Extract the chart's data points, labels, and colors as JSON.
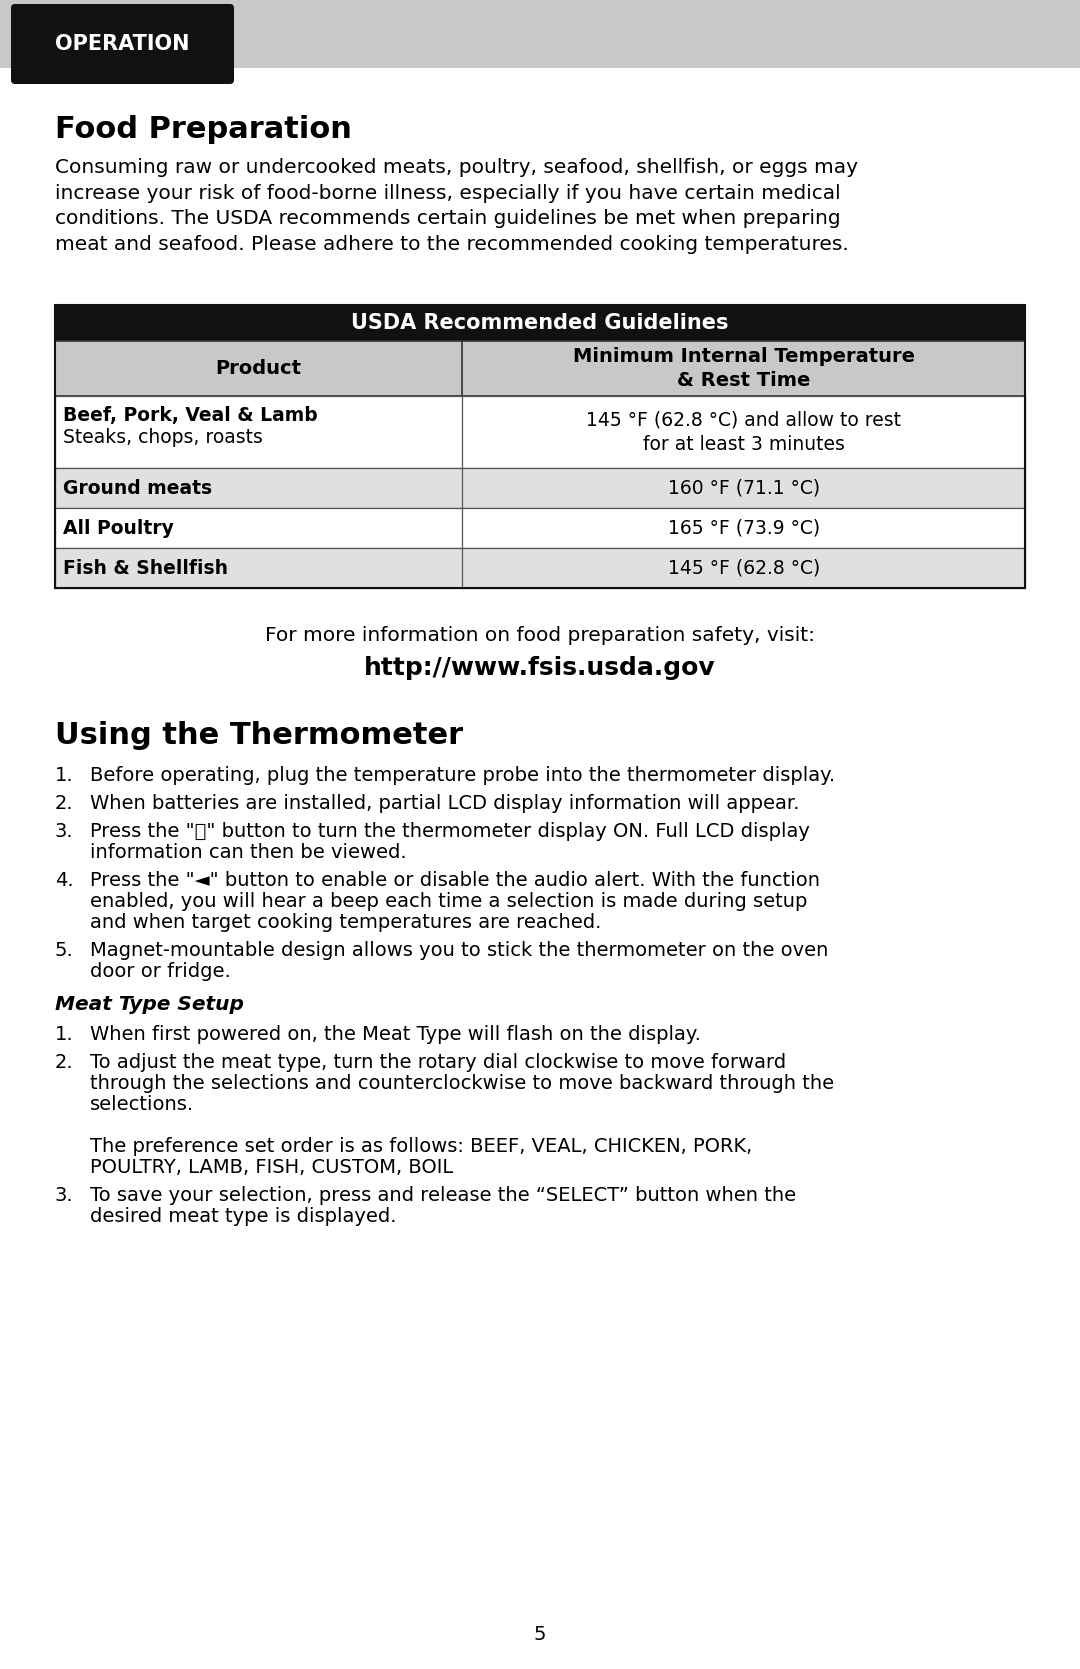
{
  "bg_color": "#ffffff",
  "page_bg_color": "#c8c8c8",
  "header_bg_color": "#111111",
  "header_text": "OPERATION",
  "header_text_color": "#ffffff",
  "section1_title": "Food Preparation",
  "section1_body": "Consuming raw or undercooked meats, poultry, seafood, shellfish, or eggs may\nincrease your risk of food-borne illness, especially if you have certain medical\nconditions. The USDA recommends certain guidelines be met when preparing\nmeat and seafood. Please adhere to the recommended cooking temperatures.",
  "table_header_bg": "#111111",
  "table_header_text": "USDA Recommended Guidelines",
  "table_header_text_color": "#ffffff",
  "table_subheader_bg": "#c8c8c8",
  "table_col1_header": "Product",
  "table_col2_header": "Minimum Internal Temperature\n& Rest Time",
  "table_rows": [
    {
      "col1_bold": "Beef, Pork, Veal & Lamb",
      "col1_normal": "Steaks, chops, roasts",
      "col2": "145 °F (62.8 °C) and allow to rest\nfor at least 3 minutes",
      "row_bg": "#ffffff"
    },
    {
      "col1_bold": "Ground meats",
      "col1_normal": "",
      "col2": "160 °F (71.1 °C)",
      "row_bg": "#e0e0e0"
    },
    {
      "col1_bold": "All Poultry",
      "col1_normal": "",
      "col2": "165 °F (73.9 °C)",
      "row_bg": "#ffffff"
    },
    {
      "col1_bold": "Fish & Shellfish",
      "col1_normal": "",
      "col2": "145 °F (62.8 °C)",
      "row_bg": "#e0e0e0"
    }
  ],
  "url_line1": "For more information on food preparation safety, visit:",
  "url_line2": "http://www.fsis.usda.gov",
  "section2_title": "Using the Thermometer",
  "section2_items": [
    {
      "num": "1.",
      "text": "Before operating, plug the temperature probe into the thermometer display."
    },
    {
      "num": "2.",
      "text": "When batteries are installed, partial LCD display information will appear."
    },
    {
      "num": "3.",
      "text": "Press the \"⏻\" button to turn the thermometer display ON. Full LCD display\n    information can then be viewed."
    },
    {
      "num": "4.",
      "text": "Press the \"◄\" button to enable or disable the audio alert. With the function\n    enabled, you will hear a beep each time a selection is made during setup\n    and when target cooking temperatures are reached."
    },
    {
      "num": "5.",
      "text": "Magnet-mountable design allows you to stick the thermometer on the oven\n    door or fridge."
    }
  ],
  "subsection_title": "Meat Type Setup",
  "subsection_items": [
    {
      "num": "1.",
      "text": "When first powered on, the Meat Type will flash on the display."
    },
    {
      "num": "2.",
      "text": "To adjust the meat type, turn the rotary dial clockwise to move forward\n    through the selections and counterclockwise to move backward through the\n    selections.\n\n    The preference set order is as follows: BEEF, VEAL, CHICKEN, PORK,\n    POULTRY, LAMB, FISH, CUSTOM, BOIL"
    },
    {
      "num": "3.",
      "text": "To save your selection, press and release the “SELECT” button when the\n    desired meat type is displayed."
    }
  ],
  "page_number": "5"
}
